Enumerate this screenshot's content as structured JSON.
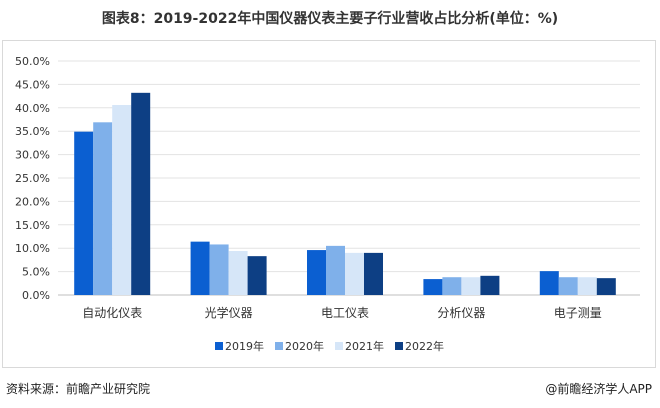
{
  "title": "图表8：2019-2022年中国仪器仪表主要子行业营收占比分析(单位：%)",
  "source": "资料来源：前瞻产业研究院",
  "brand": "@前瞻经济学人APP",
  "chart_data": {
    "type": "bar",
    "title": "图表8：2019-2022年中国仪器仪表主要子行业营收占比分析(单位：%)",
    "categories": [
      "自动化仪表",
      "光学仪器",
      "电工仪表",
      "分析仪器",
      "电子测量"
    ],
    "series": [
      {
        "name": "2019年",
        "color": "#0b5fd1",
        "values": [
          34.9,
          11.4,
          9.6,
          3.4,
          5.1
        ]
      },
      {
        "name": "2020年",
        "color": "#7fb0ea",
        "values": [
          36.9,
          10.8,
          10.5,
          3.8,
          3.8
        ]
      },
      {
        "name": "2021年",
        "color": "#d6e6f8",
        "values": [
          40.6,
          9.4,
          9.0,
          3.8,
          3.8
        ]
      },
      {
        "name": "2022年",
        "color": "#0d3f84",
        "values": [
          43.2,
          8.3,
          9.0,
          4.1,
          3.6
        ]
      }
    ],
    "yticks": [
      "0.0%",
      "5.0%",
      "10.0%",
      "15.0%",
      "20.0%",
      "25.0%",
      "30.0%",
      "35.0%",
      "40.0%",
      "45.0%",
      "50.0%"
    ],
    "ylim": [
      0,
      50
    ],
    "grid": true,
    "legend": "bottom"
  }
}
